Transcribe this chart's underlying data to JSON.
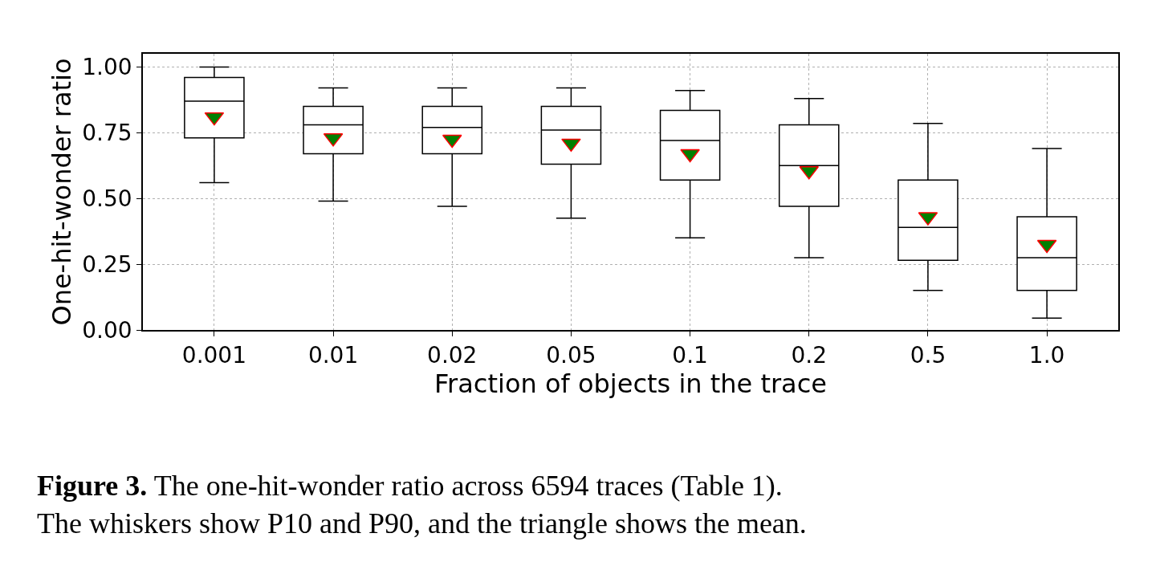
{
  "chart_data": {
    "type": "box",
    "xlabel": "Fraction of objects in the trace",
    "ylabel": "One-hit-wonder ratio",
    "categories": [
      "0.001",
      "0.01",
      "0.02",
      "0.05",
      "0.1",
      "0.2",
      "0.5",
      "1.0"
    ],
    "color": "#000000",
    "boxes": [
      {
        "low": 0.56,
        "q1": 0.73,
        "median": 0.87,
        "q3": 0.96,
        "high": 1.0,
        "mean": 0.81
      },
      {
        "low": 0.49,
        "q1": 0.67,
        "median": 0.78,
        "q3": 0.85,
        "high": 0.92,
        "mean": 0.73
      },
      {
        "low": 0.47,
        "q1": 0.67,
        "median": 0.77,
        "q3": 0.85,
        "high": 0.92,
        "mean": 0.725
      },
      {
        "low": 0.425,
        "q1": 0.63,
        "median": 0.76,
        "q3": 0.85,
        "high": 0.92,
        "mean": 0.71
      },
      {
        "low": 0.35,
        "q1": 0.57,
        "median": 0.72,
        "q3": 0.835,
        "high": 0.91,
        "mean": 0.67
      },
      {
        "low": 0.275,
        "q1": 0.47,
        "median": 0.625,
        "q3": 0.78,
        "high": 0.88,
        "mean": 0.605
      },
      {
        "low": 0.15,
        "q1": 0.265,
        "median": 0.39,
        "q3": 0.57,
        "high": 0.785,
        "mean": 0.43
      },
      {
        "low": 0.045,
        "q1": 0.15,
        "median": 0.275,
        "q3": 0.43,
        "high": 0.69,
        "mean": 0.325
      }
    ],
    "ylim": [
      0,
      1.05
    ],
    "yticks": [
      {
        "value": 0,
        "label": "0.00"
      },
      {
        "value": 0.25,
        "label": "0.25"
      },
      {
        "value": 0.5,
        "label": "0.50"
      },
      {
        "value": 0.75,
        "label": "0.75"
      },
      {
        "value": 1,
        "label": "1.00"
      }
    ],
    "grid": true,
    "marker": "triangle",
    "annotations": [
      "Figure 3.",
      "The one-hit-wonder ratio across 6594 traces (Table 1).",
      "The whiskers show P10 and P90, and the triangle shows the mean."
    ]
  }
}
